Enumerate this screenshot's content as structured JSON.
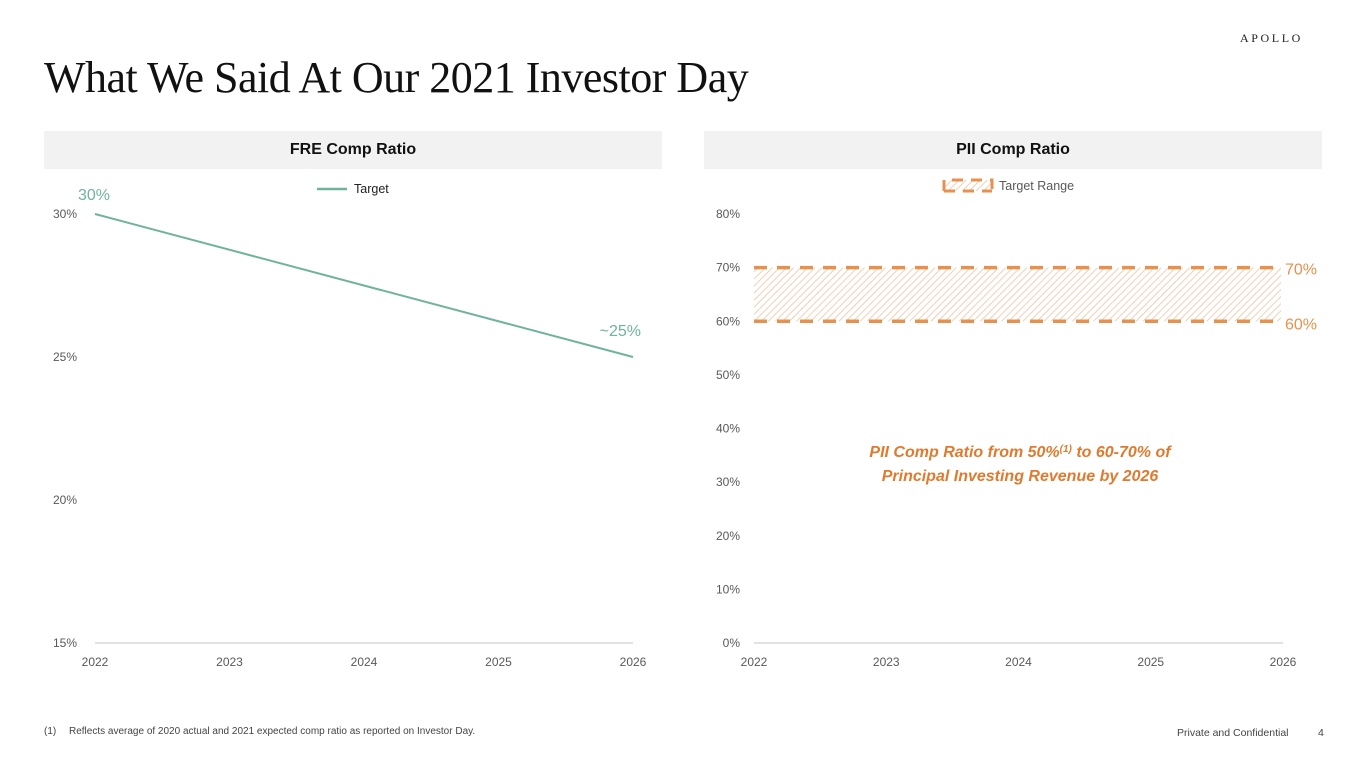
{
  "page": {
    "title": "What We Said At Our 2021 Investor Day",
    "logo": "APOLLO",
    "footnote_marker": "(1)",
    "footnote_text": "Reflects average of 2020 actual and 2021 expected comp ratio as reported on Investor Day.",
    "confidential": "Private and Confidential",
    "page_number": "4"
  },
  "annotation": {
    "line1_pre": "PII Comp Ratio from 50%",
    "line1_sup": "(1)",
    "line1_post": " to 60-70% of",
    "line2": "Principal Investing Revenue by 2026"
  },
  "colors": {
    "green": "#6fb39b",
    "orange": "#e8914f",
    "axis": "#d9d9d9"
  },
  "chart_data": [
    {
      "type": "line",
      "title": "FRE Comp Ratio",
      "categories": [
        "2022",
        "2023",
        "2024",
        "2025",
        "2026"
      ],
      "series": [
        {
          "name": "Target",
          "values": [
            30,
            null,
            null,
            null,
            25
          ]
        }
      ],
      "ylim": [
        15,
        30
      ],
      "yticks": [
        15,
        20,
        25,
        30
      ],
      "ytick_labels": [
        "15%",
        "20%",
        "25%",
        "30%"
      ],
      "data_labels": [
        {
          "category": "2022",
          "value": 30,
          "text": "30%"
        },
        {
          "category": "2026",
          "value": 25,
          "text": "~25%"
        }
      ],
      "legend": {
        "position": "top-center",
        "entries": [
          "Target"
        ]
      },
      "xlabel": "",
      "ylabel": "",
      "grid": false
    },
    {
      "type": "area",
      "title": "PII Comp Ratio",
      "categories": [
        "2022",
        "2023",
        "2024",
        "2025",
        "2026"
      ],
      "series": [
        {
          "name": "Target Range",
          "low": [
            60,
            60,
            60,
            60,
            60
          ],
          "high": [
            70,
            70,
            70,
            70,
            70
          ]
        }
      ],
      "ylim": [
        0,
        80
      ],
      "yticks": [
        0,
        10,
        20,
        30,
        40,
        50,
        60,
        70,
        80
      ],
      "ytick_labels": [
        "0%",
        "10%",
        "20%",
        "30%",
        "40%",
        "50%",
        "60%",
        "70%",
        "80%"
      ],
      "data_labels": [
        {
          "value": 70,
          "text": "70%"
        },
        {
          "value": 60,
          "text": "60%"
        }
      ],
      "legend": {
        "position": "top-center",
        "entries": [
          "Target Range"
        ]
      },
      "xlabel": "",
      "ylabel": "",
      "grid": false
    }
  ]
}
